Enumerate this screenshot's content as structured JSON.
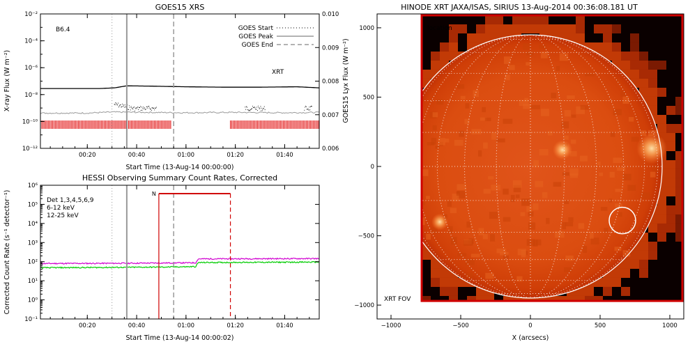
{
  "chart_data": [
    {
      "type": "line",
      "title": "GOES15 XRS",
      "xlabel": "Start Time (13-Aug-14 00:00:00)",
      "ylabel": "X-ray Flux (W m⁻²)",
      "ylabel_right": "GOES15 Lyx Flux (W m⁻²)",
      "x_ticks": [
        "00:20",
        "00:40",
        "01:00",
        "01:20",
        "01:40"
      ],
      "x_tick_minutes": [
        20,
        40,
        60,
        80,
        100
      ],
      "xlim_minutes": [
        1,
        114
      ],
      "y_tick_exponents": [
        -12,
        -10,
        -8,
        -6,
        -4,
        -2
      ],
      "y_tick_labels": [
        "10⁻¹²",
        "10⁻¹⁰",
        "10⁻⁸",
        "10⁻⁶",
        "10⁻⁴",
        "10⁻²"
      ],
      "ylim_exponent": [
        -12,
        -2
      ],
      "y_right_ticks": [
        "0.006",
        "0.007",
        "0.008",
        "0.009",
        "0.010"
      ],
      "y_right_values": [
        0.006,
        0.007,
        0.008,
        0.009,
        0.01
      ],
      "class_label": "B6.4",
      "xrt_label": "XRT",
      "legend": [
        {
          "label": "GOES Start",
          "style": "dotted",
          "minute": 30
        },
        {
          "label": "GOES Peak",
          "style": "solid",
          "minute": 36
        },
        {
          "label": "GOES End",
          "style": "dashed",
          "minute": 55
        }
      ],
      "series": [
        {
          "name": "long",
          "color": "#000000",
          "x_minutes": [
            1,
            25,
            31,
            36,
            45,
            60,
            75,
            90,
            105,
            114
          ],
          "log_values": [
            -7.55,
            -7.55,
            -7.5,
            -7.35,
            -7.37,
            -7.42,
            -7.45,
            -7.45,
            -7.42,
            -7.5
          ]
        },
        {
          "name": "lyx",
          "color": "#999999",
          "x_minutes": [
            1,
            20,
            30,
            45,
            60,
            80,
            100,
            114
          ],
          "values": [
            0.00705,
            0.00705,
            0.00708,
            0.00707,
            0.00706,
            0.00707,
            0.00706,
            0.00707
          ]
        }
      ],
      "short_channel_segments_minutes": [
        [
          31,
          48
        ],
        [
          84,
          92
        ],
        [
          108,
          111
        ]
      ],
      "coverage_bars_minutes": [
        [
          1,
          54
        ],
        [
          78,
          114
        ]
      ],
      "colors": {
        "coverage": "#e00000",
        "lyx": "#999999",
        "xrt_label": "#e00000"
      }
    },
    {
      "type": "line",
      "title": "HESSI Observing Summary Count Rates, Corrected",
      "xlabel": "Start Time (13-Aug-14 00:00:02)",
      "ylabel": "Corrected Count Rate (s⁻¹ detector⁻¹)",
      "x_ticks": [
        "00:20",
        "00:40",
        "01:00",
        "01:20",
        "01:40"
      ],
      "x_tick_minutes": [
        20,
        40,
        60,
        80,
        100
      ],
      "xlim_minutes": [
        1,
        114
      ],
      "y_tick_exponents": [
        -1,
        0,
        1,
        2,
        3,
        4,
        5,
        6
      ],
      "y_tick_labels": [
        "10⁻¹",
        "10⁰",
        "10¹",
        "10²",
        "10³",
        "10⁴",
        "10⁵",
        "10⁶"
      ],
      "ylim_exponent": [
        -1,
        6
      ],
      "legend": [
        {
          "label": "Det 1,3,4,5,6,9",
          "color": "#000000"
        },
        {
          "label": "6-12 keV",
          "color": "#d000d0"
        },
        {
          "label": "12-25 keV",
          "color": "#00cc00"
        }
      ],
      "series": [
        {
          "name": "6-12 keV",
          "color": "#d000d0",
          "x_minutes": [
            1,
            30,
            50,
            64,
            65,
            114
          ],
          "values": [
            80,
            82,
            85,
            88,
            140,
            145
          ]
        },
        {
          "name": "12-25 keV",
          "color": "#00cc00",
          "x_minutes": [
            1,
            30,
            50,
            64,
            65,
            114
          ],
          "values": [
            48,
            50,
            52,
            55,
            90,
            95
          ]
        }
      ],
      "event_lines_minutes": {
        "start": 30,
        "peak": 36,
        "end": 55
      },
      "night_interval_minutes": [
        49,
        78
      ],
      "night_label": "N",
      "colors": {
        "night": "#d00000"
      }
    },
    {
      "type": "heatmap",
      "title": "HINODE XRT JAXA/ISAS, SIRIUS 13-Aug-2014 00:36:08.181 UT",
      "xlabel": "X (arcsecs)",
      "ylabel": "",
      "x_ticks": [
        "−1000",
        "−500",
        "0",
        "500",
        "1000"
      ],
      "x_tick_values": [
        -1000,
        -500,
        0,
        500,
        1000
      ],
      "y_ticks": [
        "1000",
        "500",
        "0",
        "−500",
        "−1000"
      ],
      "y_tick_values": [
        1000,
        500,
        0,
        -500,
        -1000
      ],
      "xlim": [
        -1100,
        1100
      ],
      "ylim": [
        -1100,
        1100
      ],
      "location_label": "location",
      "fov_label": "XRT FOV",
      "solar_radius_arcsec": 945,
      "fov_arcsec": {
        "x": [
          -780,
          1090
        ],
        "y": [
          -970,
          1090
        ]
      },
      "flare_location_arcsec": {
        "x": 660,
        "y": -390,
        "r": 95
      },
      "bright_regions_arcsec": [
        {
          "x": 870,
          "y": 130,
          "size": 110
        },
        {
          "x": 230,
          "y": 120,
          "size": 70
        },
        {
          "x": -650,
          "y": -400,
          "size": 60
        }
      ],
      "colors": {
        "fov": "#d00000",
        "limb": "#ffffff",
        "disk": "#d94b0c"
      }
    }
  ]
}
